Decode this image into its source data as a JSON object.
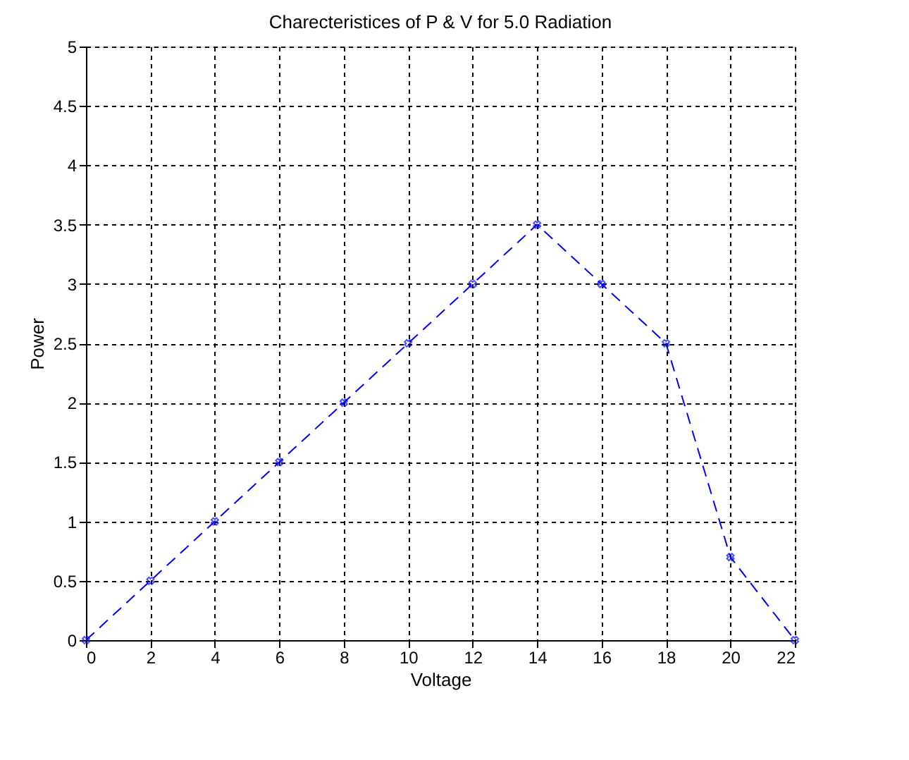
{
  "chart_data": {
    "type": "line",
    "title": "Charecteristices of P & V for 5.0 Radiation",
    "xlabel": "Voltage",
    "ylabel": "Power",
    "x": [
      0,
      2,
      4,
      6,
      8,
      10,
      12,
      14,
      16,
      18,
      20,
      22
    ],
    "series": [
      {
        "color": "#0000ff",
        "values": [
          0,
          0.5,
          1,
          1.5,
          2,
          2.5,
          3,
          3.5,
          3,
          2.5,
          0.7,
          0
        ]
      }
    ],
    "xlim": [
      0,
      22
    ],
    "xticks": [
      0,
      2,
      4,
      6,
      8,
      10,
      12,
      14,
      16,
      18,
      20,
      22
    ],
    "ylim": [
      0,
      5
    ],
    "yticks": [
      0,
      0.5,
      1,
      1.5,
      2,
      2.5,
      3,
      3.5,
      4,
      4.5,
      5
    ],
    "grid": true,
    "marker": "cross",
    "line_style": "dashed"
  }
}
